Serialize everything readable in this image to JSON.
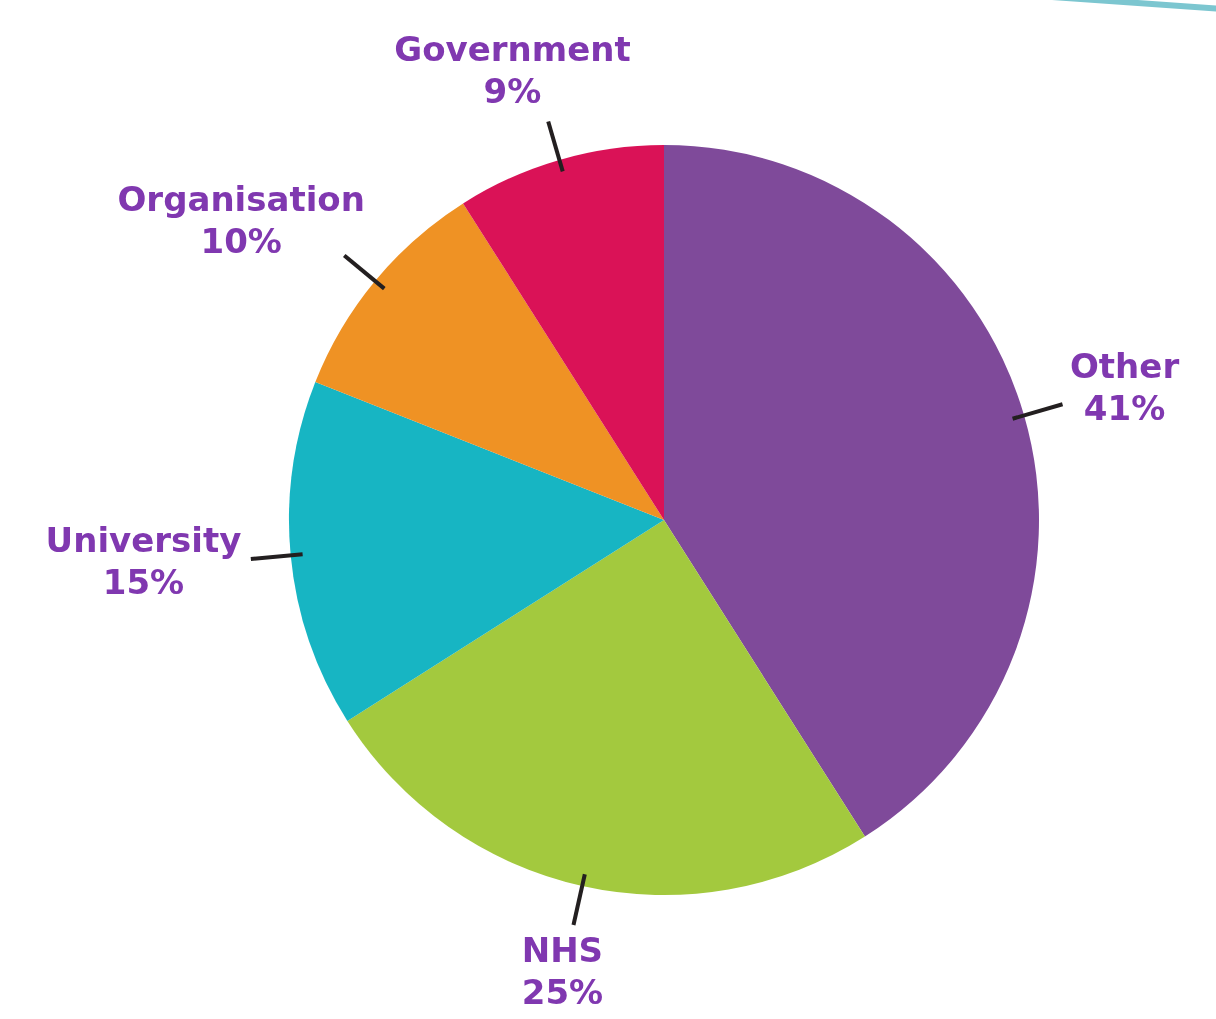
{
  "chart_data": {
    "type": "pie",
    "categories": [
      "Other",
      "NHS",
      "University",
      "Organisation",
      "Government"
    ],
    "values": [
      41,
      25,
      15,
      10,
      9
    ],
    "value_labels": [
      "41%",
      "25%",
      "15%",
      "10%",
      "9%"
    ],
    "colors": [
      "#7f4a9a",
      "#a3c93e",
      "#17b5c3",
      "#ef9224",
      "#da1257"
    ],
    "legend": false
  }
}
